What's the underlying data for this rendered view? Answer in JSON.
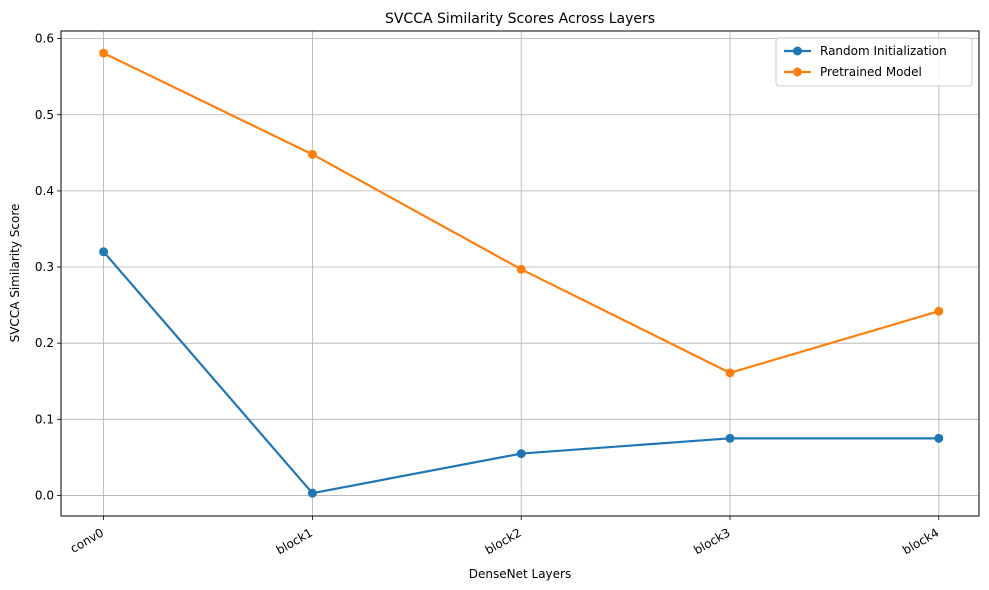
{
  "chart_data": {
    "type": "line",
    "title": "SVCCA Similarity Scores Across Layers",
    "xlabel": "DenseNet Layers",
    "ylabel": "SVCCA Similarity Score",
    "categories": [
      "conv0",
      "block1",
      "block2",
      "block3",
      "block4"
    ],
    "ylim": [
      -0.027,
      0.61
    ],
    "yticks": [
      "0.0",
      "0.1",
      "0.2",
      "0.3",
      "0.4",
      "0.5",
      "0.6"
    ],
    "grid": true,
    "legend_position": "top-right",
    "series": [
      {
        "name": "Random Initialization",
        "color": "#1f77b4",
        "values": [
          0.32,
          0.003,
          0.055,
          0.075,
          0.075
        ]
      },
      {
        "name": "Pretrained Model",
        "color": "#ff7f0e",
        "values": [
          0.581,
          0.448,
          0.297,
          0.161,
          0.242
        ]
      }
    ]
  }
}
